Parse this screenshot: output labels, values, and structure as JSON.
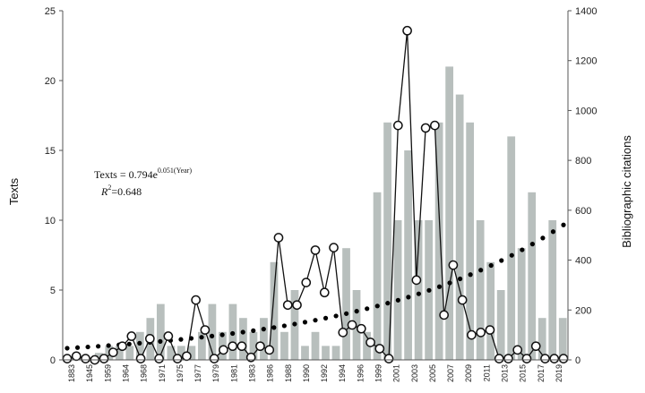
{
  "chart_data": {
    "type": "bar",
    "ylabel": "Texts",
    "y2label": "Bibliographic citations",
    "ylim": [
      0,
      25
    ],
    "y2lim": [
      0,
      1400
    ],
    "yticks": [
      "0",
      "5",
      "10",
      "15",
      "20",
      "25"
    ],
    "y2ticks": [
      "0",
      "200",
      "400",
      "600",
      "800",
      "1000",
      "1200",
      "1400"
    ],
    "categories": [
      "1883",
      "1945",
      "1959",
      "1964",
      "1968",
      "1971",
      "1975",
      "1977",
      "1979",
      "1981",
      "1983",
      "1986",
      "1988",
      "1990",
      "1992",
      "1994",
      "1996",
      "1999",
      "2001",
      "2003",
      "2005",
      "2007",
      "2009",
      "2011",
      "2013",
      "2015",
      "2017",
      "2019"
    ],
    "bars_texts": [
      0,
      0,
      0,
      0.5,
      1,
      1,
      1,
      2,
      3,
      4,
      1,
      1,
      1,
      2,
      4,
      2,
      4,
      3,
      2,
      3,
      7,
      2,
      5,
      1,
      2,
      1,
      1,
      8,
      5,
      2,
      12,
      17,
      10,
      15,
      10,
      10,
      17,
      21,
      19,
      17,
      10,
      7,
      5,
      16,
      8,
      12,
      3,
      10,
      3
    ],
    "citations": [
      5,
      15,
      5,
      0,
      5,
      30,
      55,
      95,
      5,
      85,
      5,
      95,
      5,
      15,
      240,
      120,
      5,
      40,
      55,
      55,
      10,
      55,
      40,
      490,
      220,
      220,
      310,
      440,
      270,
      450,
      110,
      140,
      125,
      70,
      45,
      5,
      940,
      1320,
      320,
      930,
      940,
      180,
      380,
      240,
      100,
      110,
      120,
      5,
      5,
      40,
      5,
      55,
      5,
      5,
      5
    ],
    "trend_points": 49,
    "annotation_eq": "Texts = 0.794e",
    "annotation_exp": "0.051(Year)",
    "annotation_r2_label": "R",
    "annotation_r2_sup": "2",
    "annotation_r2_value": "=0.648",
    "colors": {
      "bars": "#b8bfbd",
      "line": "#111111",
      "trend": "#000000",
      "marker_fill": "#ffffff"
    }
  }
}
